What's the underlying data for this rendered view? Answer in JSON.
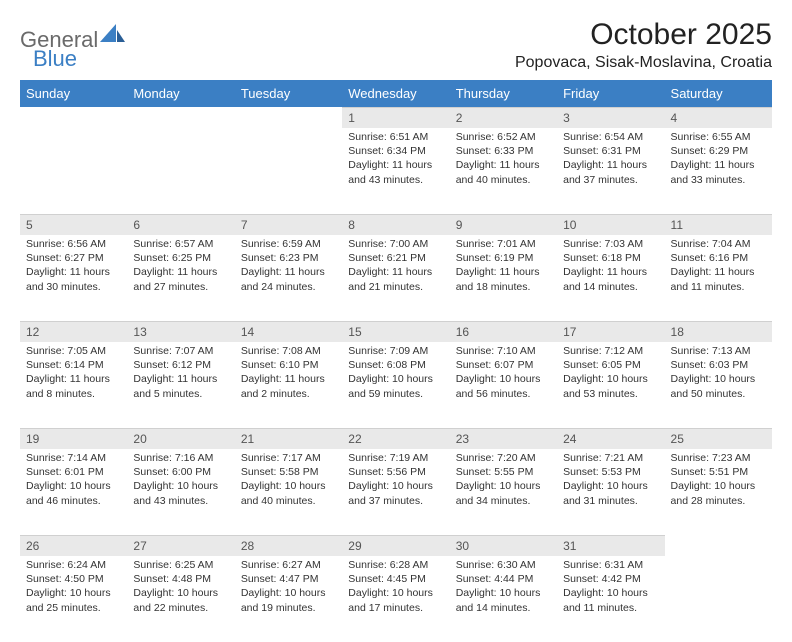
{
  "logo": {
    "word1": "General",
    "word2": "Blue",
    "color1": "#6a6a6a",
    "color2": "#3b7fc4"
  },
  "title": "October 2025",
  "location": "Popovaca, Sisak-Moslavina, Croatia",
  "dayHeaders": [
    "Sunday",
    "Monday",
    "Tuesday",
    "Wednesday",
    "Thursday",
    "Friday",
    "Saturday"
  ],
  "header_bg": "#3b7fc4",
  "header_fg": "#ffffff",
  "daynum_bg": "#e9e9e9",
  "weeks": [
    [
      null,
      null,
      null,
      {
        "n": "1",
        "sunrise": "6:51 AM",
        "sunset": "6:34 PM",
        "daylight": "11 hours and 43 minutes."
      },
      {
        "n": "2",
        "sunrise": "6:52 AM",
        "sunset": "6:33 PM",
        "daylight": "11 hours and 40 minutes."
      },
      {
        "n": "3",
        "sunrise": "6:54 AM",
        "sunset": "6:31 PM",
        "daylight": "11 hours and 37 minutes."
      },
      {
        "n": "4",
        "sunrise": "6:55 AM",
        "sunset": "6:29 PM",
        "daylight": "11 hours and 33 minutes."
      }
    ],
    [
      {
        "n": "5",
        "sunrise": "6:56 AM",
        "sunset": "6:27 PM",
        "daylight": "11 hours and 30 minutes."
      },
      {
        "n": "6",
        "sunrise": "6:57 AM",
        "sunset": "6:25 PM",
        "daylight": "11 hours and 27 minutes."
      },
      {
        "n": "7",
        "sunrise": "6:59 AM",
        "sunset": "6:23 PM",
        "daylight": "11 hours and 24 minutes."
      },
      {
        "n": "8",
        "sunrise": "7:00 AM",
        "sunset": "6:21 PM",
        "daylight": "11 hours and 21 minutes."
      },
      {
        "n": "9",
        "sunrise": "7:01 AM",
        "sunset": "6:19 PM",
        "daylight": "11 hours and 18 minutes."
      },
      {
        "n": "10",
        "sunrise": "7:03 AM",
        "sunset": "6:18 PM",
        "daylight": "11 hours and 14 minutes."
      },
      {
        "n": "11",
        "sunrise": "7:04 AM",
        "sunset": "6:16 PM",
        "daylight": "11 hours and 11 minutes."
      }
    ],
    [
      {
        "n": "12",
        "sunrise": "7:05 AM",
        "sunset": "6:14 PM",
        "daylight": "11 hours and 8 minutes."
      },
      {
        "n": "13",
        "sunrise": "7:07 AM",
        "sunset": "6:12 PM",
        "daylight": "11 hours and 5 minutes."
      },
      {
        "n": "14",
        "sunrise": "7:08 AM",
        "sunset": "6:10 PM",
        "daylight": "11 hours and 2 minutes."
      },
      {
        "n": "15",
        "sunrise": "7:09 AM",
        "sunset": "6:08 PM",
        "daylight": "10 hours and 59 minutes."
      },
      {
        "n": "16",
        "sunrise": "7:10 AM",
        "sunset": "6:07 PM",
        "daylight": "10 hours and 56 minutes."
      },
      {
        "n": "17",
        "sunrise": "7:12 AM",
        "sunset": "6:05 PM",
        "daylight": "10 hours and 53 minutes."
      },
      {
        "n": "18",
        "sunrise": "7:13 AM",
        "sunset": "6:03 PM",
        "daylight": "10 hours and 50 minutes."
      }
    ],
    [
      {
        "n": "19",
        "sunrise": "7:14 AM",
        "sunset": "6:01 PM",
        "daylight": "10 hours and 46 minutes."
      },
      {
        "n": "20",
        "sunrise": "7:16 AM",
        "sunset": "6:00 PM",
        "daylight": "10 hours and 43 minutes."
      },
      {
        "n": "21",
        "sunrise": "7:17 AM",
        "sunset": "5:58 PM",
        "daylight": "10 hours and 40 minutes."
      },
      {
        "n": "22",
        "sunrise": "7:19 AM",
        "sunset": "5:56 PM",
        "daylight": "10 hours and 37 minutes."
      },
      {
        "n": "23",
        "sunrise": "7:20 AM",
        "sunset": "5:55 PM",
        "daylight": "10 hours and 34 minutes."
      },
      {
        "n": "24",
        "sunrise": "7:21 AM",
        "sunset": "5:53 PM",
        "daylight": "10 hours and 31 minutes."
      },
      {
        "n": "25",
        "sunrise": "7:23 AM",
        "sunset": "5:51 PM",
        "daylight": "10 hours and 28 minutes."
      }
    ],
    [
      {
        "n": "26",
        "sunrise": "6:24 AM",
        "sunset": "4:50 PM",
        "daylight": "10 hours and 25 minutes."
      },
      {
        "n": "27",
        "sunrise": "6:25 AM",
        "sunset": "4:48 PM",
        "daylight": "10 hours and 22 minutes."
      },
      {
        "n": "28",
        "sunrise": "6:27 AM",
        "sunset": "4:47 PM",
        "daylight": "10 hours and 19 minutes."
      },
      {
        "n": "29",
        "sunrise": "6:28 AM",
        "sunset": "4:45 PM",
        "daylight": "10 hours and 17 minutes."
      },
      {
        "n": "30",
        "sunrise": "6:30 AM",
        "sunset": "4:44 PM",
        "daylight": "10 hours and 14 minutes."
      },
      {
        "n": "31",
        "sunrise": "6:31 AM",
        "sunset": "4:42 PM",
        "daylight": "10 hours and 11 minutes."
      },
      null
    ]
  ],
  "labels": {
    "sunrise": "Sunrise: ",
    "sunset": "Sunset: ",
    "daylight": "Daylight: "
  }
}
